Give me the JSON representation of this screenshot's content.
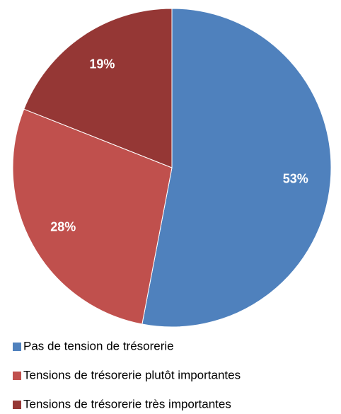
{
  "chart_data": {
    "type": "pie",
    "series": [
      {
        "name": "Pas de tension de trésorerie",
        "color": "#4f81bd",
        "values": [
          53
        ]
      },
      {
        "name": "Tensions de trésorerie plutôt importantes",
        "color": "#c0504d",
        "values": [
          28
        ]
      },
      {
        "name": "Tensions de trésorerie très importantes",
        "color": "#953735",
        "values": [
          19
        ]
      }
    ],
    "value_labels": [
      "53%",
      "28%",
      "19%"
    ],
    "legend": "bottom"
  }
}
